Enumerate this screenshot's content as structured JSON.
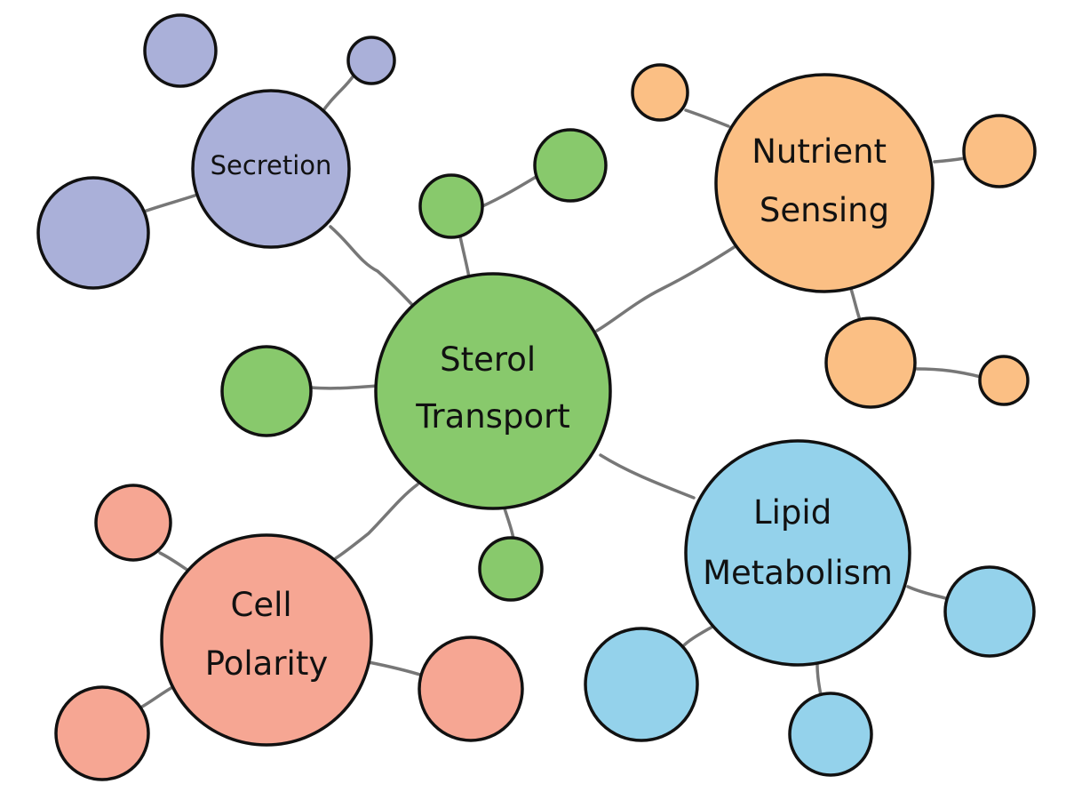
{
  "palette": {
    "purple": "#aab0d9",
    "green": "#88c96c",
    "orange": "#fbbf84",
    "blue": "#94d2eb",
    "salmon": "#f6a693",
    "outline": "#111111",
    "connector": "#777777",
    "background": "#ffffff"
  },
  "hubs": [
    {
      "id": "sterol",
      "lines": [
        "Sterol",
        "Transport"
      ],
      "color": "green"
    },
    {
      "id": "secretion",
      "lines": [
        "Secretion"
      ],
      "color": "purple"
    },
    {
      "id": "nutrient",
      "lines": [
        "Nutrient",
        "Sensing"
      ],
      "color": "orange"
    },
    {
      "id": "lipid",
      "lines": [
        "Lipid",
        "Metabolism"
      ],
      "color": "blue"
    },
    {
      "id": "polarity",
      "lines": [
        "Cell",
        "Polarity"
      ],
      "color": "salmon"
    }
  ]
}
